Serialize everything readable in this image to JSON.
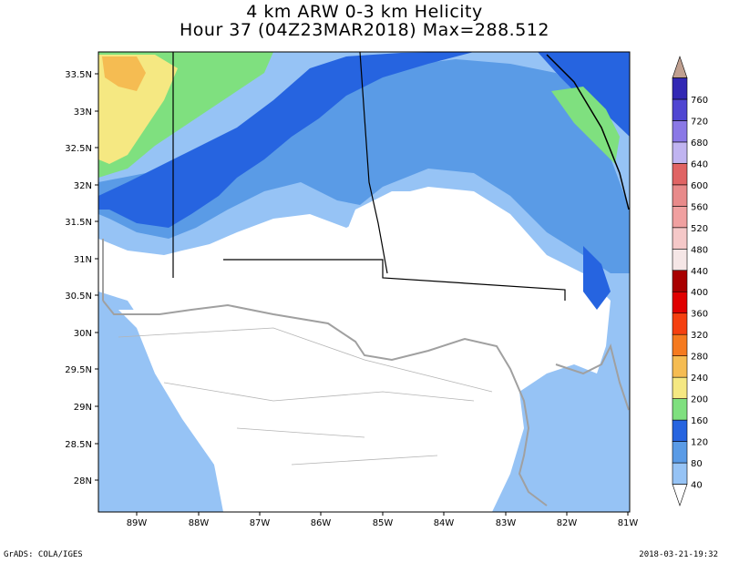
{
  "title_line1": "4 km ARW 0-3 km Helicity",
  "title_line2": "Hour 37 (04Z23MAR2018) Max=288.512",
  "lat_labels": [
    "33.5N",
    "33N",
    "32.5N",
    "32N",
    "31.5N",
    "31N",
    "30.5N",
    "30N",
    "29.5N",
    "29N",
    "28.5N",
    "28N"
  ],
  "lon_labels": [
    "89W",
    "88W",
    "87W",
    "86W",
    "85W",
    "84W",
    "83W",
    "82W",
    "81W"
  ],
  "colorbar_labels": [
    "40",
    "80",
    "120",
    "160",
    "200",
    "240",
    "280",
    "320",
    "360",
    "400",
    "440",
    "480",
    "520",
    "560",
    "600",
    "640",
    "680",
    "720",
    "760"
  ],
  "colorbar_colors": [
    "#ffffff",
    "#96c3f5",
    "#5a9be6",
    "#2664e0",
    "#7fe07f",
    "#f5e882",
    "#f5bc52",
    "#f57a1f",
    "#f54010",
    "#e00000",
    "#a80000",
    "#f5e6e6",
    "#f5c8c8",
    "#f0a0a0",
    "#e88a8a",
    "#e06464",
    "#c0b4f0",
    "#8a78e6",
    "#5046d2",
    "#3228b4",
    "#c0a090"
  ],
  "footer_left": "GrADS: COLA/IGES",
  "footer_right": "2018-03-21-19:32"
}
